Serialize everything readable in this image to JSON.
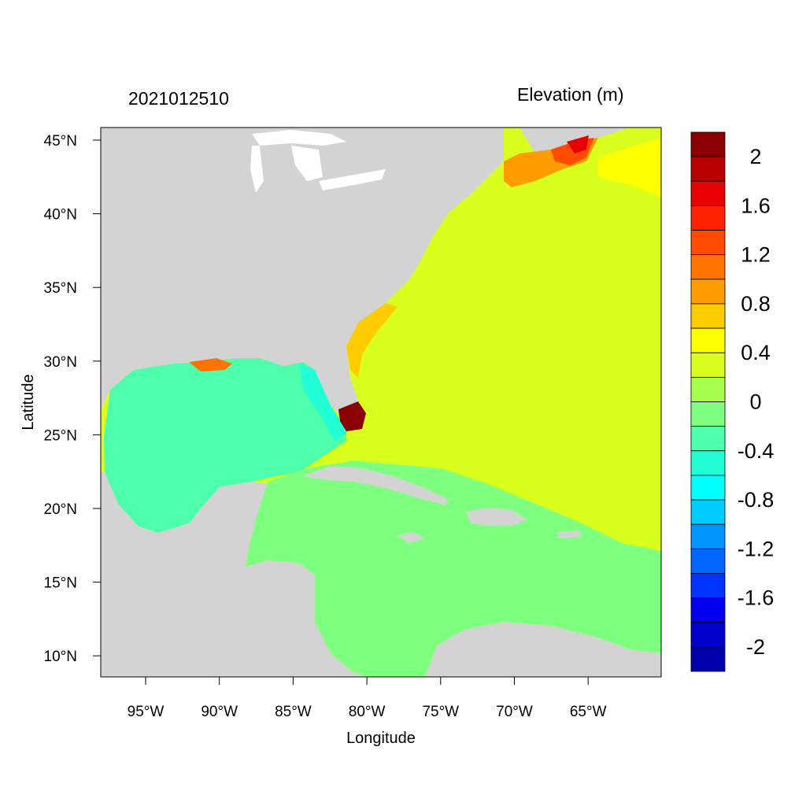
{
  "header": {
    "date_label": "2021012510",
    "variable_label": "Elevation (m)"
  },
  "axes": {
    "x_title": "Longitude",
    "y_title": "Latitude",
    "x_ticks": [
      "95°W",
      "90°W",
      "85°W",
      "80°W",
      "75°W",
      "70°W",
      "65°W"
    ],
    "y_ticks": [
      "45°N",
      "40°N",
      "35°N",
      "30°N",
      "25°N",
      "20°N",
      "15°N",
      "10°N"
    ]
  },
  "colorbar": {
    "colors": [
      "#8b0000",
      "#b80000",
      "#e60000",
      "#ff2200",
      "#ff4b00",
      "#ff7300",
      "#ff9c00",
      "#ffcc00",
      "#ffff00",
      "#d9ff1f",
      "#a6ff4a",
      "#7fff7f",
      "#4dffaa",
      "#22ffd6",
      "#00ffff",
      "#00ccff",
      "#0096ff",
      "#0066ff",
      "#0033ff",
      "#0000ee",
      "#0000cc",
      "#0000aa"
    ],
    "labels": [
      "2",
      "1.6",
      "1.2",
      "0.8",
      "0.4",
      "0",
      "-0.4",
      "-0.8",
      "-1.2",
      "-1.6",
      "-2"
    ]
  },
  "map_colors": {
    "land": "#d3d3d3",
    "lakes": "#ffffff",
    "atlantic": "#d9ff1f",
    "caribbean": "#7fff7f",
    "gulf": "#4dffaa",
    "gulf_east": "#22ffd6"
  }
}
